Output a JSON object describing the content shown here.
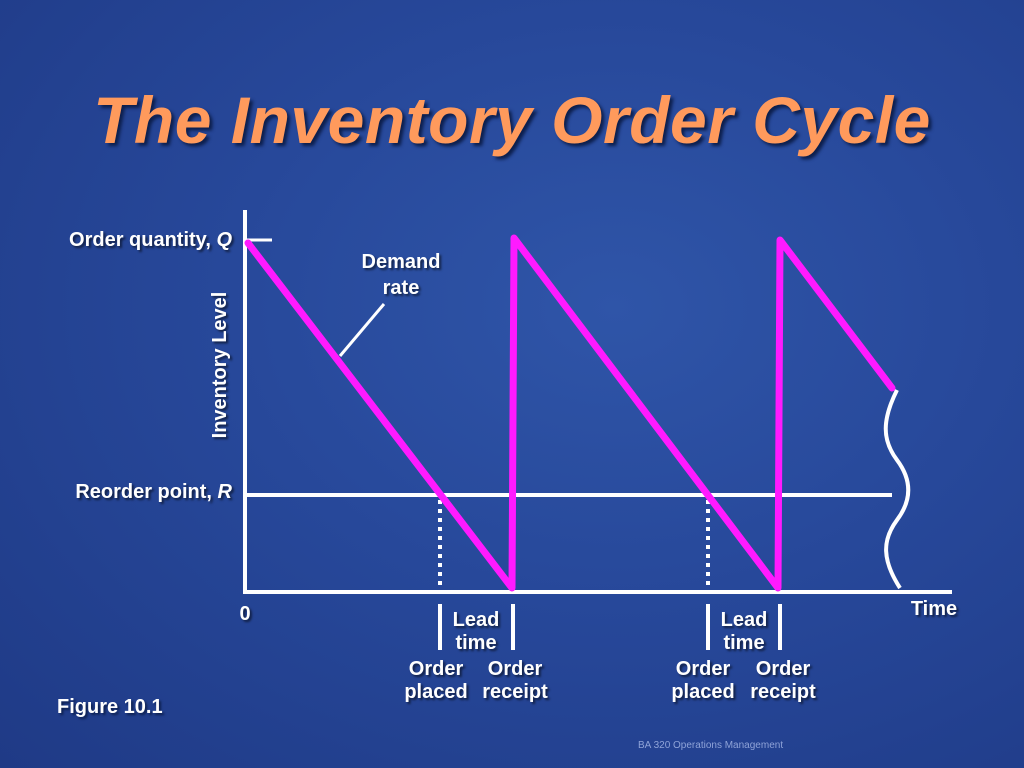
{
  "slide": {
    "title": "The Inventory Order Cycle",
    "figure_label": "Figure 10.1",
    "footer": "BA 320 Operations Management"
  },
  "diagram": {
    "y_axis_label": "Inventory Level",
    "x_axis_label": "Time",
    "origin_label": "0",
    "order_quantity": {
      "text": "Order quantity, ",
      "symbol": "Q"
    },
    "reorder_point": {
      "text": "Reorder point, ",
      "symbol": "R"
    },
    "demand_rate": [
      "Demand",
      "rate"
    ],
    "cycles": [
      {
        "lead_time": [
          "Lead",
          "time"
        ],
        "order_placed": [
          "Order",
          "placed"
        ],
        "order_receipt": [
          "Order",
          "receipt"
        ]
      },
      {
        "lead_time": [
          "Lead",
          "time"
        ],
        "order_placed": [
          "Order",
          "placed"
        ],
        "order_receipt": [
          "Order",
          "receipt"
        ]
      }
    ]
  },
  "colors": {
    "background": "#27489a",
    "title": "#ff9a5c",
    "inventory_line": "#ff1aff",
    "axes": "#ffffff"
  }
}
